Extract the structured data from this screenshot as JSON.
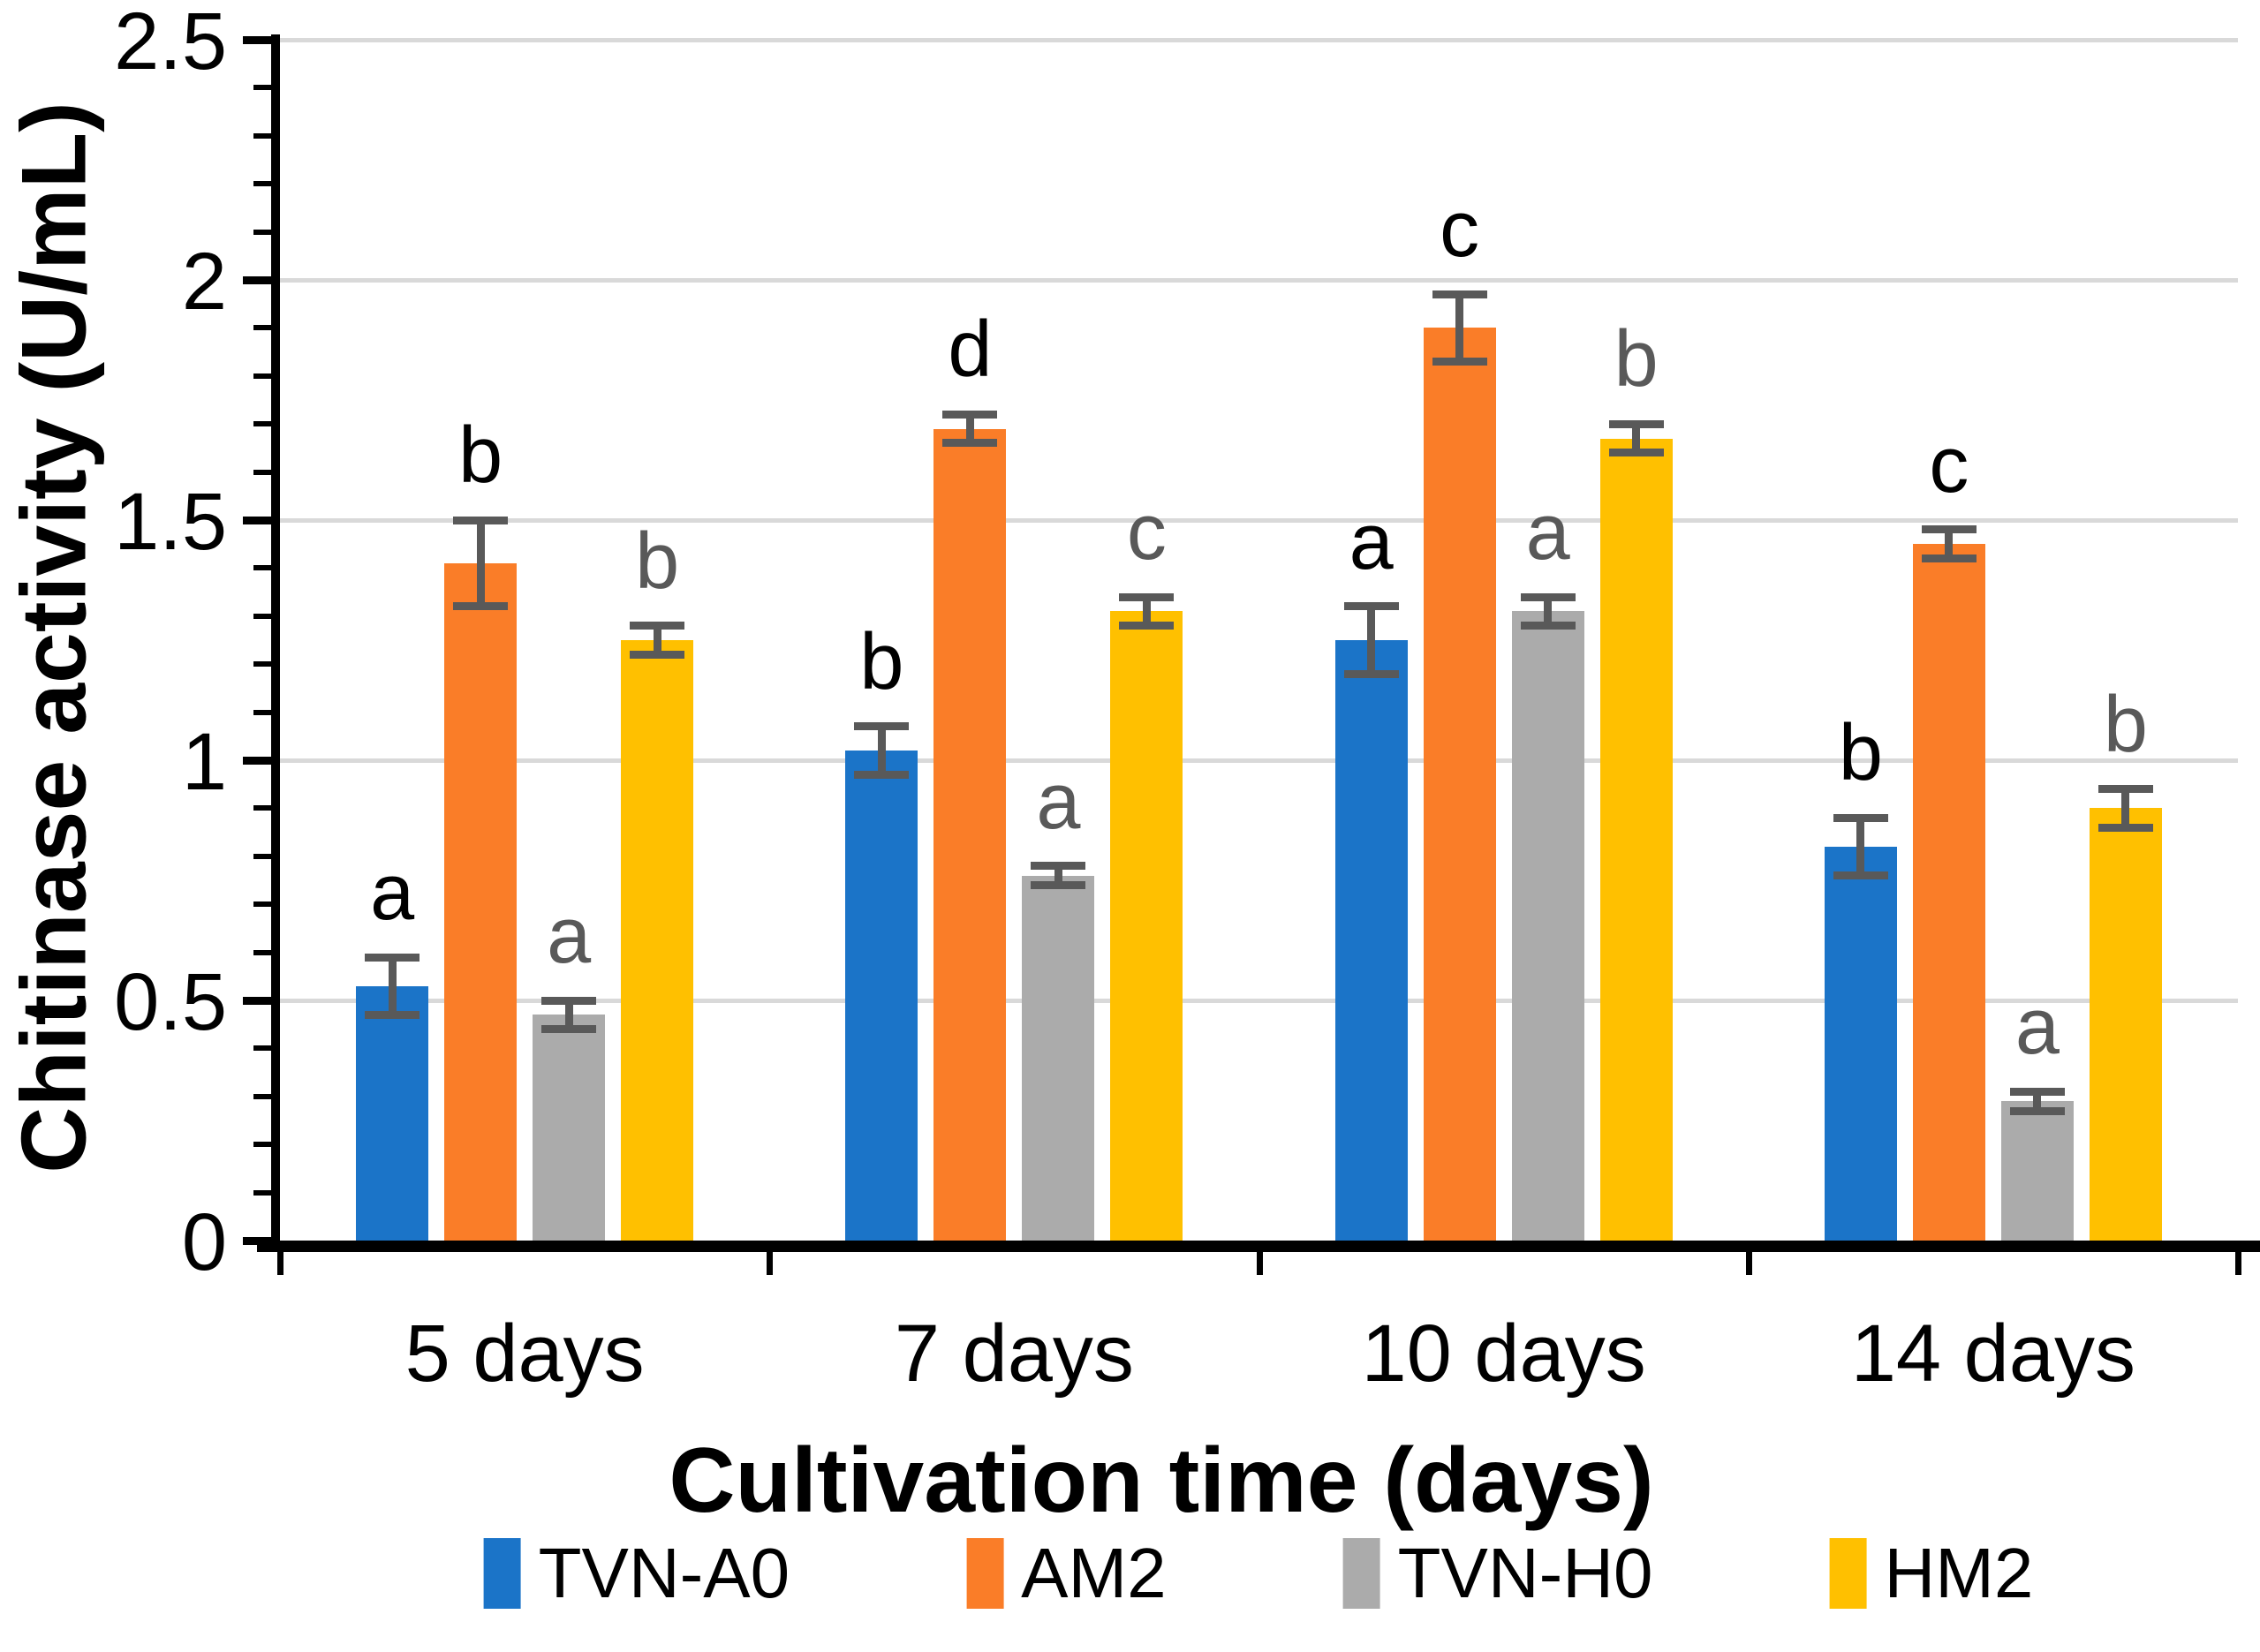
{
  "chart_data": {
    "type": "bar",
    "title": "",
    "xlabel": "Cultivation time (days)",
    "ylabel": "Chitinase activity (U/mL)",
    "categories": [
      "5 days",
      "7 days",
      "10 days",
      "14 days"
    ],
    "series": [
      {
        "name": "TVN-A0",
        "color": "#1B74C8",
        "letter_color": "#000000",
        "values": [
          0.53,
          1.02,
          1.25,
          0.82
        ],
        "errors": [
          0.06,
          0.05,
          0.07,
          0.06
        ],
        "letters": [
          "a",
          "b",
          "a",
          "b"
        ]
      },
      {
        "name": "AM2",
        "color": "#FA7D28",
        "letter_color": "#000000",
        "values": [
          1.41,
          1.69,
          1.9,
          1.45
        ],
        "errors": [
          0.09,
          0.03,
          0.07,
          0.03
        ],
        "letters": [
          "b",
          "d",
          "c",
          "c"
        ]
      },
      {
        "name": "TVN-H0",
        "color": "#ABABAB",
        "letter_color": "#595959",
        "values": [
          0.47,
          0.76,
          1.31,
          0.29
        ],
        "errors": [
          0.03,
          0.02,
          0.03,
          0.02
        ],
        "letters": [
          "a",
          "a",
          "a",
          "a"
        ]
      },
      {
        "name": "HM2",
        "color": "#FFC000",
        "letter_color": "#595959",
        "values": [
          1.25,
          1.31,
          1.67,
          0.9
        ],
        "errors": [
          0.03,
          0.03,
          0.03,
          0.04
        ],
        "letters": [
          "b",
          "c",
          "b",
          "b"
        ]
      }
    ],
    "y_axis": {
      "min": 0,
      "max": 2.5,
      "major_step": 0.5,
      "minor_step": 0.1,
      "tick_labels": [
        "0",
        "0.5",
        "1",
        "1.5",
        "2",
        "2.5"
      ]
    },
    "grid_on": true,
    "grid_color": "#D9D9D9",
    "error_bar_color": "#595959",
    "axis_color": "#000000",
    "legend_position": "bottom"
  }
}
